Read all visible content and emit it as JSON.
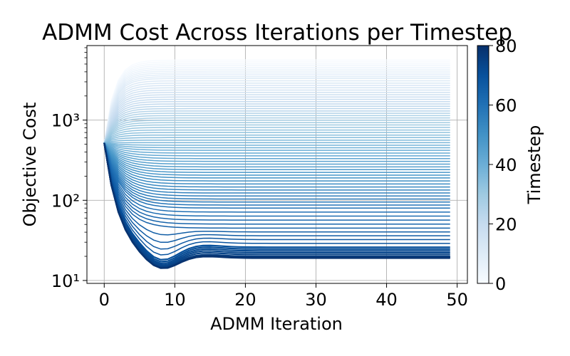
{
  "chart_data": {
    "type": "line",
    "title": "ADMM Cost Across Iterations per Timestep",
    "xlabel": "ADMM Iteration",
    "ylabel": "Objective Cost",
    "x_scale": "linear",
    "y_scale": "log",
    "xlim": [
      -2.45,
      51.45
    ],
    "ylim": [
      9.2,
      8500
    ],
    "xticks": [
      0,
      10,
      20,
      30,
      40,
      50
    ],
    "xtick_labels": [
      "0",
      "10",
      "20",
      "30",
      "40",
      "50"
    ],
    "yticks": [
      10,
      100,
      1000
    ],
    "ytick_labels": [
      "10¹",
      "10²",
      "10³"
    ],
    "grid": true,
    "x_values_note": "iterations 0..49",
    "series_family": {
      "count": 80,
      "color_by": "timestep",
      "timestep_range": [
        0,
        79
      ],
      "description": "one cost curve per timestep; start cost ~520 at iteration 0, converged cost decreases from ~5600 (timestep 0) to ~19 (timestep 79); late timesteps dip to ~13 around iteration 8 then settle near 19",
      "converged_cost_at_timestep": [
        [
          0,
          5600
        ],
        [
          10,
          3300
        ],
        [
          20,
          1700
        ],
        [
          30,
          870
        ],
        [
          40,
          420
        ],
        [
          50,
          190
        ],
        [
          60,
          80
        ],
        [
          65,
          45
        ],
        [
          70,
          26
        ],
        [
          75,
          20
        ],
        [
          79,
          19
        ]
      ],
      "dip_minimum": {
        "iteration": 8,
        "cost": 13
      },
      "initial_cost": 520
    },
    "colorbar": {
      "label": "Timestep",
      "range": [
        0,
        80
      ],
      "ticks": [
        0,
        20,
        40,
        60,
        80
      ],
      "tick_labels": [
        "0",
        "20",
        "40",
        "60",
        "80"
      ],
      "colormap": "Blues",
      "color_low": "#f7fbff",
      "color_high": "#08306b"
    }
  }
}
